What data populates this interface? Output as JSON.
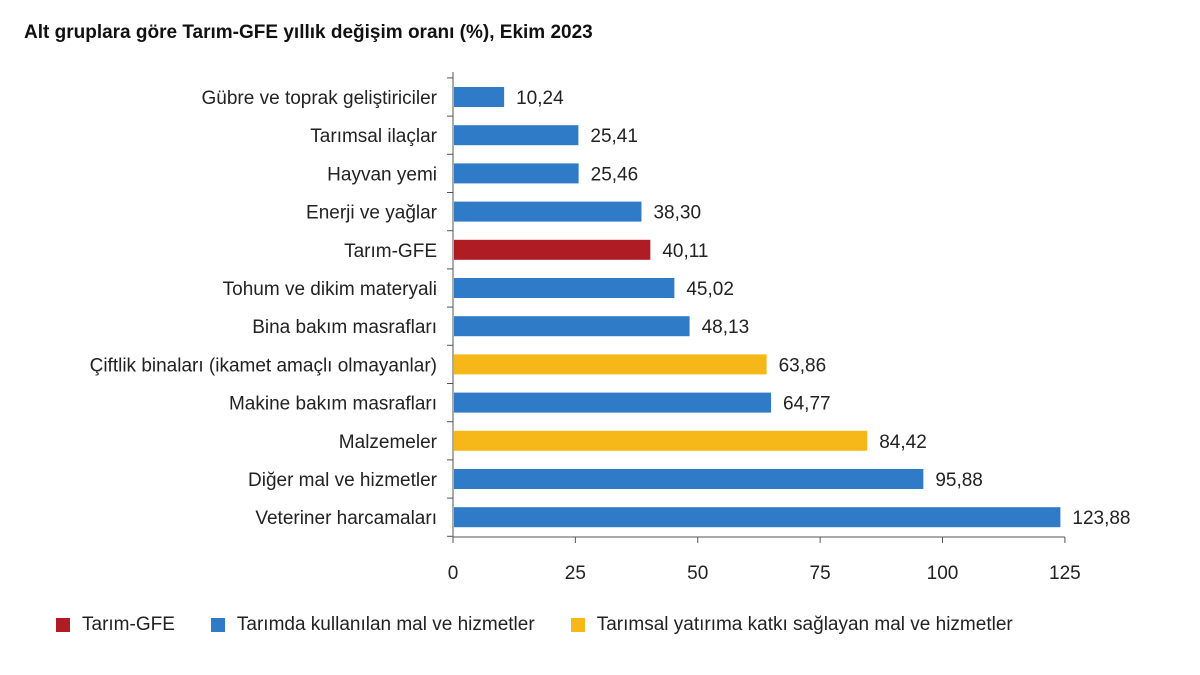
{
  "chart_title": "Alt gruplara göre Tarım-GFE yıllık değişim oranı (%), Ekim 2023",
  "colors": {
    "tarim_gfe": "#b01c24",
    "kullanilan": "#2f7bc7",
    "yatirim": "#f6b818",
    "axis": "#555555"
  },
  "chart_data": {
    "type": "bar",
    "orientation": "horizontal",
    "title": "Alt gruplara göre Tarım-GFE yıllık değişim oranı (%), Ekim 2023",
    "categories": [
      "Gübre ve toprak geliştiriciler",
      "Tarımsal ilaçlar",
      "Hayvan yemi",
      "Enerji ve yağlar",
      "Tarım-GFE",
      "Tohum ve dikim materyali",
      "Bina bakım masrafları",
      "Çiftlik binaları (ikamet amaçlı olmayanlar)",
      "Makine bakım masrafları",
      "Malzemeler",
      "Diğer mal ve hizmetler",
      "Veteriner harcamaları"
    ],
    "values": [
      10.24,
      25.41,
      25.46,
      38.3,
      40.11,
      45.02,
      48.13,
      63.86,
      64.77,
      84.42,
      95.88,
      123.88
    ],
    "value_labels": [
      "10,24",
      "25,41",
      "25,46",
      "38,30",
      "40,11",
      "45,02",
      "48,13",
      "63,86",
      "64,77",
      "84,42",
      "95,88",
      "123,88"
    ],
    "groups": [
      "kullanilan",
      "kullanilan",
      "kullanilan",
      "kullanilan",
      "tarim_gfe",
      "kullanilan",
      "kullanilan",
      "yatirim",
      "kullanilan",
      "yatirim",
      "kullanilan",
      "kullanilan"
    ],
    "xlim": [
      0,
      125
    ],
    "xticks": [
      "0",
      "25",
      "50",
      "75",
      "100",
      "125"
    ],
    "grid": false,
    "legend_position": "bottom",
    "legend": [
      {
        "group": "tarim_gfe",
        "label": "Tarım-GFE"
      },
      {
        "group": "kullanilan",
        "label": "Tarımda kullanılan mal ve hizmetler"
      },
      {
        "group": "yatirim",
        "label": "Tarımsal yatırıma katkı sağlayan mal ve hizmetler"
      }
    ]
  }
}
